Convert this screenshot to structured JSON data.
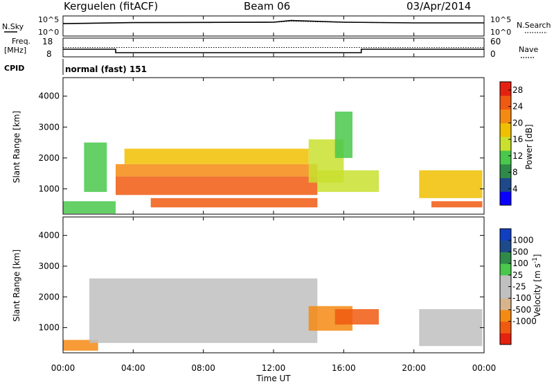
{
  "header": {
    "station": "Kerguelen (fitACF)",
    "beam": "Beam 06",
    "date": "03/Apr/2014"
  },
  "top_panels": {
    "nsky_label": "N.Sky",
    "nsky_ticks": [
      "10^5",
      "10^0"
    ],
    "nsearch_label": "N.Search",
    "nsearch_ticks": [
      "10^5",
      "10^0"
    ],
    "freq_label_line1": "Freq.",
    "freq_label_line2": "[MHz]",
    "freq_ticks": [
      "18",
      "8"
    ],
    "nave_label": "Nave",
    "nave_ticks": [
      "60",
      "0"
    ],
    "cpid_label": "CPID",
    "cpid_text": "normal (fast) 151"
  },
  "x_axis": {
    "label": "Time UT",
    "ticks": [
      "00:00",
      "04:00",
      "08:00",
      "12:00",
      "16:00",
      "20:00",
      "00:00"
    ]
  },
  "colors": {
    "power": [
      "#0a00ff",
      "#1e4a8c",
      "#2f8a4a",
      "#49c84b",
      "#c9e02f",
      "#f0c000",
      "#f58a12",
      "#f05a10",
      "#e52210"
    ],
    "velocity": [
      "#e52210",
      "#f05a10",
      "#f58a12",
      "#d8b48c",
      "#c0c0c0",
      "#c0c0c0",
      "#49c84b",
      "#2f8a4a",
      "#1e4a8c",
      "#1040c0"
    ]
  },
  "chart_data": [
    {
      "type": "line",
      "title": "Kerguelen (fitACF)",
      "panel": "N.Sky / N.Search",
      "x": [
        "00:00",
        "04:00",
        "08:00",
        "12:00",
        "13:00",
        "16:00",
        "20:00",
        "24:00"
      ],
      "series": [
        {
          "name": "N.Sky",
          "values": [
            1500,
            3000,
            3500,
            4000,
            12000,
            4000,
            2500,
            2500
          ]
        },
        {
          "name": "N.Search",
          "values": [
            1500,
            3000,
            3000,
            3500,
            8000,
            3500,
            2500,
            2500
          ]
        }
      ],
      "yscale": "log",
      "ylim": [
        1,
        100000
      ]
    },
    {
      "type": "line",
      "panel": "Freq. / Nave",
      "x": [
        "00:00",
        "03:00",
        "03:00",
        "17:00",
        "17:00",
        "24:00"
      ],
      "series": [
        {
          "name": "Freq.",
          "values": [
            12.0,
            12.0,
            10.0,
            10.0,
            12.0,
            12.0
          ]
        },
        {
          "name": "Nave",
          "values": [
            30,
            30,
            30,
            30,
            30,
            30
          ]
        }
      ],
      "ylim_freq": [
        8,
        18
      ],
      "ylim_nave": [
        0,
        60
      ]
    },
    {
      "type": "heatmap",
      "panel": "Power",
      "xlabel": "Time UT",
      "ylabel": "Slant Range [km]",
      "xlim": [
        "00:00",
        "24:00"
      ],
      "ylim": [
        180,
        4600
      ],
      "yticks": [
        1000,
        2000,
        3000,
        4000
      ],
      "colorbar_label": "Power [dB]",
      "colorbar_ticks": [
        4,
        8,
        12,
        16,
        20,
        24,
        28
      ],
      "colorbar_range": [
        0,
        30
      ],
      "regions": [
        {
          "t0": 0.0,
          "t1": 3.0,
          "r0": 200,
          "r1": 600,
          "level": 10
        },
        {
          "t0": 1.2,
          "t1": 2.5,
          "r0": 900,
          "r1": 2500,
          "level": 10
        },
        {
          "t0": 3.0,
          "t1": 14.5,
          "r0": 800,
          "r1": 1400,
          "level": 26
        },
        {
          "t0": 3.0,
          "t1": 14.5,
          "r0": 1400,
          "r1": 1800,
          "level": 22
        },
        {
          "t0": 3.5,
          "t1": 14.0,
          "r0": 1800,
          "r1": 2300,
          "level": 18
        },
        {
          "t0": 5.0,
          "t1": 14.5,
          "r0": 400,
          "r1": 700,
          "level": 26
        },
        {
          "t0": 14.0,
          "t1": 16.0,
          "r0": 1200,
          "r1": 2600,
          "level": 16
        },
        {
          "t0": 14.5,
          "t1": 18.0,
          "r0": 900,
          "r1": 1600,
          "level": 14
        },
        {
          "t0": 15.5,
          "t1": 16.5,
          "r0": 2000,
          "r1": 3500,
          "level": 10
        },
        {
          "t0": 20.3,
          "t1": 23.9,
          "r0": 700,
          "r1": 1600,
          "level": 20
        },
        {
          "t0": 21.0,
          "t1": 23.9,
          "r0": 400,
          "r1": 600,
          "level": 26
        }
      ]
    },
    {
      "type": "heatmap",
      "panel": "Velocity",
      "xlabel": "Time UT",
      "ylabel": "Slant Range [km]",
      "xlim": [
        "00:00",
        "24:00"
      ],
      "ylim": [
        180,
        4600
      ],
      "yticks": [
        1000,
        2000,
        3000,
        4000
      ],
      "colorbar_label": "Velocity [m s^-1]",
      "colorbar_ticks": [
        1000,
        500,
        100,
        25,
        -25,
        -100,
        -500,
        -1000
      ],
      "regions": [
        {
          "t0": 0.0,
          "t1": 2.0,
          "r0": 250,
          "r1": 600,
          "value": -150
        },
        {
          "t0": 1.5,
          "t1": 14.5,
          "r0": 500,
          "r1": 2600,
          "value": 0
        },
        {
          "t0": 14.0,
          "t1": 16.5,
          "r0": 900,
          "r1": 1700,
          "value": -300
        },
        {
          "t0": 15.5,
          "t1": 18.0,
          "r0": 1100,
          "r1": 1600,
          "value": -700
        },
        {
          "t0": 20.3,
          "t1": 23.9,
          "r0": 400,
          "r1": 1600,
          "value": 0
        }
      ]
    }
  ]
}
